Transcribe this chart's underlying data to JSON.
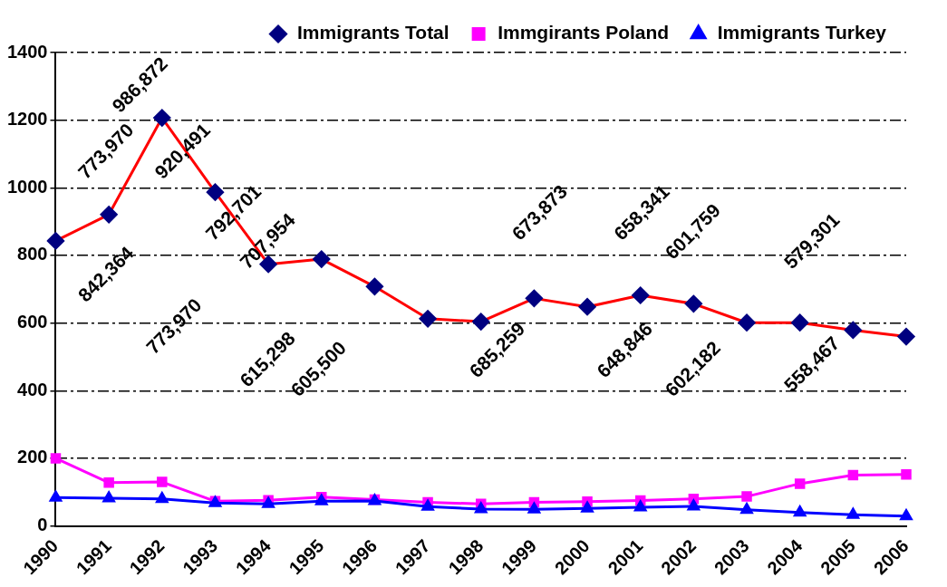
{
  "chart_data": {
    "type": "line",
    "categories": [
      "1990",
      "1991",
      "1992",
      "1993",
      "1994",
      "1995",
      "1996",
      "1997",
      "1998",
      "1999",
      "2000",
      "2001",
      "2002",
      "2003",
      "2004",
      "2005",
      "2006"
    ],
    "series": [
      {
        "name": "Immigrants Total",
        "color": "#ff0000",
        "marker": "diamond",
        "values": [
          843,
          921,
          1207,
          987,
          774,
          789,
          708,
          613,
          604,
          673,
          648,
          682,
          657,
          601,
          601,
          579,
          560
        ]
      },
      {
        "name": "Immgirants Poland",
        "color": "#ff00ff",
        "marker": "square",
        "values": [
          200,
          128,
          130,
          73,
          76,
          85,
          78,
          70,
          65,
          70,
          72,
          75,
          80,
          87,
          125,
          150,
          152
        ]
      },
      {
        "name": "Immigrants Turkey",
        "color": "#0000ff",
        "marker": "triangle",
        "values": [
          84,
          82,
          80,
          68,
          65,
          73,
          74,
          57,
          50,
          49,
          52,
          55,
          58,
          48,
          40,
          33,
          29
        ]
      }
    ],
    "ylim": [
      0,
      1400
    ],
    "yticks": [
      0,
      200,
      400,
      600,
      800,
      1000,
      1200,
      1400
    ],
    "grid": "y",
    "legend": "top",
    "line_style": "solid",
    "annotations": [
      "773,970",
      "986,872",
      "920,491",
      "842,364",
      "792,701",
      "773,970",
      "707,954",
      "615,298",
      "605,500",
      "673,873",
      "685,259",
      "658,341",
      "648,846",
      "601,759",
      "602,182",
      "579,301",
      "558,467"
    ]
  }
}
